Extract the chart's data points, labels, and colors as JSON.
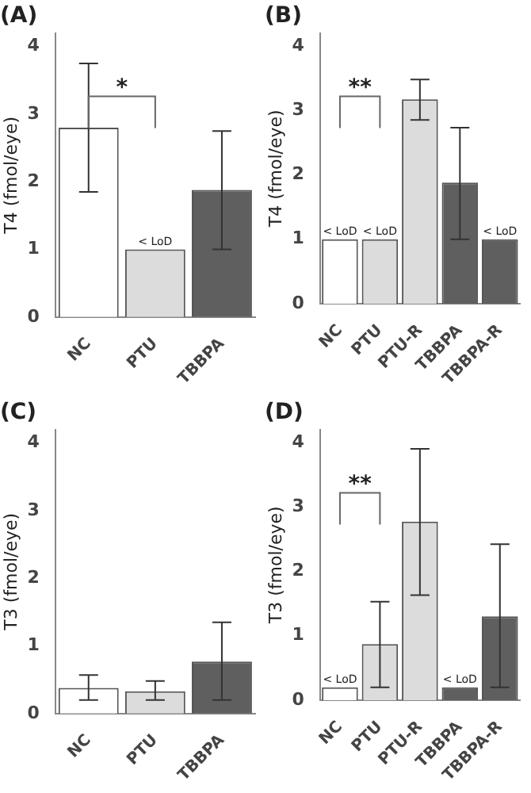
{
  "chart_data": [
    {
      "type": "bar",
      "title": "(A)",
      "ylabel": "T4 (fmol/eye)",
      "categories": [
        "NC",
        "PTU",
        "TBBPA"
      ],
      "values": [
        2.8,
        1.0,
        1.88
      ],
      "colors": [
        "#ffffff",
        "#dcdcdc",
        "#5f5f5f"
      ],
      "errors": [
        [
          1.85,
          3.75
        ],
        null,
        [
          1.0,
          2.75
        ]
      ],
      "ylim": [
        0,
        4.2
      ],
      "yticks": [
        0,
        1,
        2,
        3,
        4
      ],
      "grid": false,
      "legend": false,
      "annotations": [
        "*",
        {
          "text": "< LoD",
          "x": "PTU",
          "y": 1.0
        }
      ]
    },
    {
      "type": "bar",
      "title": "(B)",
      "ylabel": "T4 (fmol/eye)",
      "categories": [
        "NC",
        "PTU",
        "PTU-R",
        "TBBPA",
        "TBBPA-R"
      ],
      "values": [
        1.0,
        1.0,
        3.17,
        1.88,
        1.0
      ],
      "colors": [
        "#ffffff",
        "#dcdcdc",
        "#dcdcdc",
        "#5f5f5f",
        "#5f5f5f"
      ],
      "errors": [
        null,
        null,
        [
          2.85,
          3.48
        ],
        [
          1.0,
          2.73
        ],
        null
      ],
      "ylim": [
        0,
        4.2
      ],
      "yticks": [
        0,
        1,
        2,
        3,
        4
      ],
      "grid": false,
      "legend": false,
      "annotations": [
        "**",
        {
          "text": "< LoD",
          "x": "NC",
          "y": 1.0
        },
        {
          "text": "< LoD",
          "x": "PTU",
          "y": 1.0
        },
        {
          "text": "< LoD",
          "x": "TBBPA-R",
          "y": 1.0
        }
      ]
    },
    {
      "type": "bar",
      "title": "(C)",
      "ylabel": "T3 (fmol/eye)",
      "categories": [
        "NC",
        "PTU",
        "TBBPA"
      ],
      "values": [
        0.38,
        0.33,
        0.77
      ],
      "colors": [
        "#ffffff",
        "#dcdcdc",
        "#5f5f5f"
      ],
      "errors": [
        [
          0.2,
          0.57
        ],
        [
          0.2,
          0.48
        ],
        [
          0.2,
          1.35
        ]
      ],
      "ylim": [
        0,
        4.2
      ],
      "yticks": [
        0,
        1,
        2,
        3,
        4
      ],
      "grid": false,
      "legend": false
    },
    {
      "type": "bar",
      "title": "(D)",
      "ylabel": "T3 (fmol/eye)",
      "categories": [
        "NC",
        "PTU",
        "PTU-R",
        "TBBPA",
        "TBBPA-R"
      ],
      "values": [
        0.2,
        0.87,
        2.77,
        0.2,
        1.3
      ],
      "colors": [
        "#ffffff",
        "#dcdcdc",
        "#dcdcdc",
        "#5f5f5f",
        "#5f5f5f"
      ],
      "errors": [
        null,
        [
          0.2,
          1.53
        ],
        [
          1.63,
          3.9
        ],
        null,
        [
          0.2,
          2.42
        ]
      ],
      "ylim": [
        0,
        4.2
      ],
      "yticks": [
        0,
        1,
        2,
        3,
        4
      ],
      "grid": false,
      "legend": false,
      "annotations": [
        "**",
        {
          "text": "< LoD",
          "x": "NC",
          "y": 0.2
        },
        {
          "text": "< LoD",
          "x": "TBBPA",
          "y": 0.2
        }
      ]
    }
  ]
}
